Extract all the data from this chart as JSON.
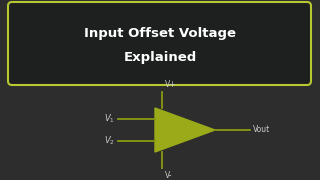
{
  "background_color": "#2d2d2d",
  "title_text_line1": "Input Offset Voltage",
  "title_text_line2": "Explained",
  "title_font_color": "#ffffff",
  "title_font_size": 9.5,
  "title_font_weight": "bold",
  "box_edge_color": "#b8c830",
  "box_face_color": "#1e2020",
  "opamp_fill_color": "#9aaa18",
  "opamp_edge_color": "#9aaa18",
  "wire_color": "#8a9a10",
  "label_color": "#cccccc",
  "label_font_size": 5.5,
  "vplus_label": "V+",
  "vminus_label": "V-",
  "vout_label": "Vout"
}
